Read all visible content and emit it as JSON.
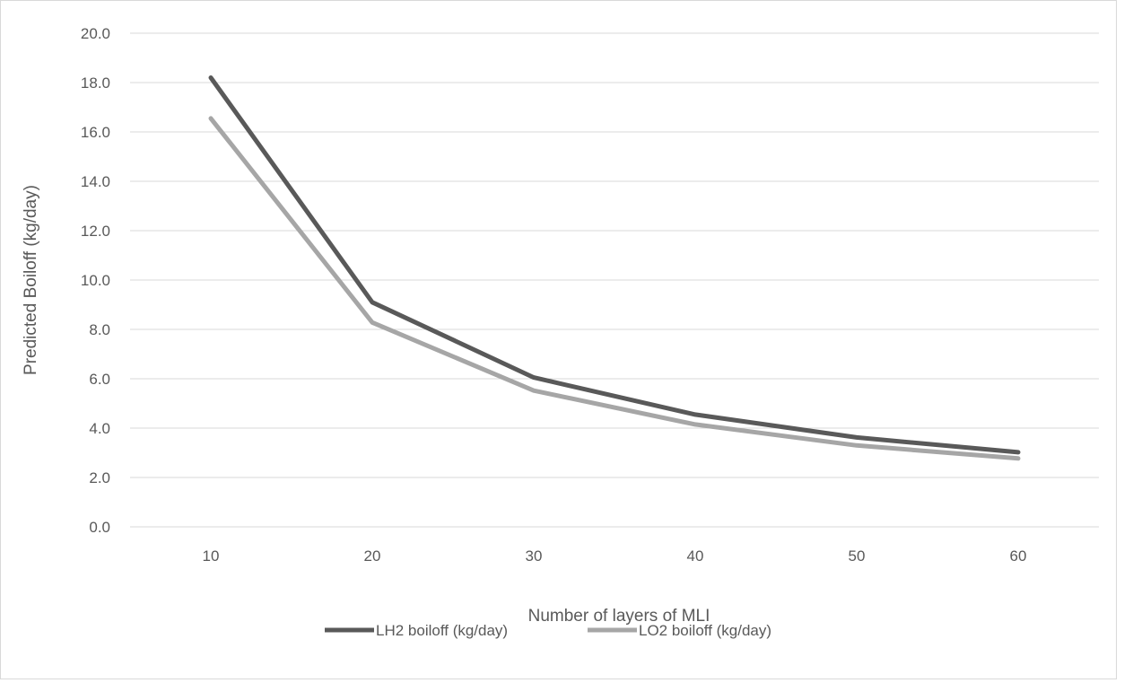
{
  "chart_data": {
    "type": "line",
    "title": "",
    "xlabel": "Number of layers of MLI",
    "ylabel": "Predicted Boiloff (kg/day)",
    "categories": [
      "10",
      "20",
      "30",
      "40",
      "50",
      "60"
    ],
    "ylim": [
      0,
      20
    ],
    "y_ticks": [
      "0.0",
      "2.0",
      "4.0",
      "6.0",
      "8.0",
      "10.0",
      "12.0",
      "14.0",
      "16.0",
      "18.0",
      "20.0"
    ],
    "grid": true,
    "legend_position": "bottom",
    "series": [
      {
        "name": "LH2 boiloff (kg/day)",
        "color": "#595959",
        "values": [
          18.2,
          9.1,
          6.05,
          4.55,
          3.62,
          3.02
        ]
      },
      {
        "name": "LO2 boiloff (kg/day)",
        "color": "#a6a6a6",
        "values": [
          16.55,
          8.28,
          5.52,
          4.15,
          3.3,
          2.77
        ]
      }
    ]
  }
}
